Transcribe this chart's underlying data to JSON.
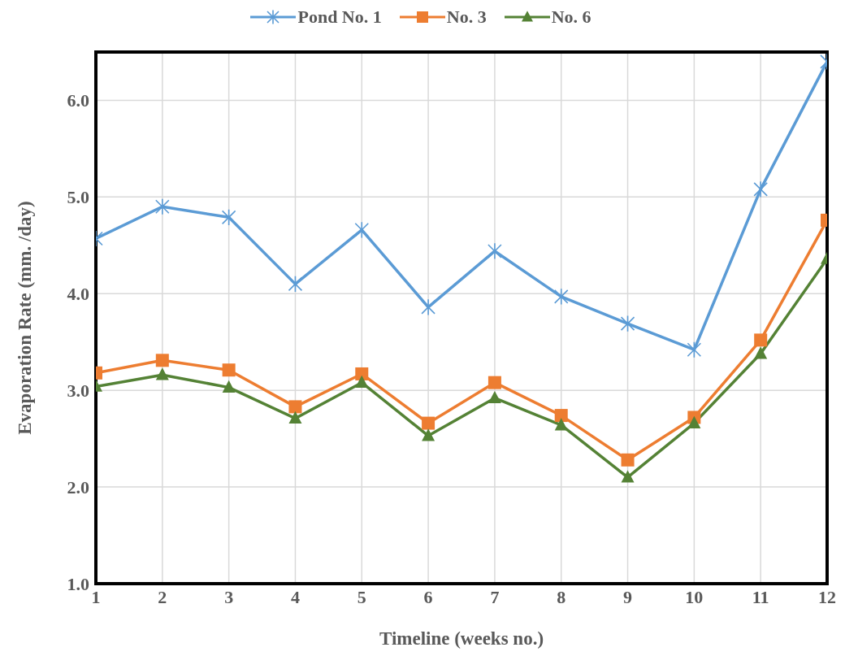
{
  "chart_data": {
    "type": "line",
    "xlabel": "Timeline (weeks no.)",
    "ylabel": "Evaporation Rate (mm. /day)",
    "x": [
      1,
      2,
      3,
      4,
      5,
      6,
      7,
      8,
      9,
      10,
      11,
      12
    ],
    "series": [
      {
        "name": "Pond No. 1",
        "color": "#5b9bd5",
        "marker": "cross",
        "values": [
          4.57,
          4.9,
          4.79,
          4.1,
          4.66,
          3.86,
          4.44,
          3.97,
          3.69,
          3.42,
          5.08,
          6.4
        ]
      },
      {
        "name": "No. 3",
        "color": "#ed7d31",
        "marker": "square",
        "values": [
          3.18,
          3.31,
          3.21,
          2.83,
          3.17,
          2.66,
          3.08,
          2.74,
          2.28,
          2.72,
          3.52,
          4.76
        ]
      },
      {
        "name": "No. 6",
        "color": "#548235",
        "marker": "triangle",
        "values": [
          3.04,
          3.16,
          3.03,
          2.71,
          3.08,
          2.53,
          2.92,
          2.64,
          2.1,
          2.66,
          3.38,
          4.36
        ]
      }
    ],
    "xlim": [
      1,
      12
    ],
    "xticks": [
      1,
      2,
      3,
      4,
      5,
      6,
      7,
      8,
      9,
      10,
      11,
      12
    ],
    "ylim": [
      1,
      6.5
    ],
    "yticks": [
      {
        "value": 1,
        "label": "1.0"
      },
      {
        "value": 2,
        "label": "2.0"
      },
      {
        "value": 3,
        "label": "3.0"
      },
      {
        "value": 4,
        "label": "4.0"
      },
      {
        "value": 5,
        "label": "5.0"
      },
      {
        "value": 6,
        "label": "6.0"
      }
    ],
    "grid": true,
    "legend": "top",
    "line_style": "solid"
  }
}
